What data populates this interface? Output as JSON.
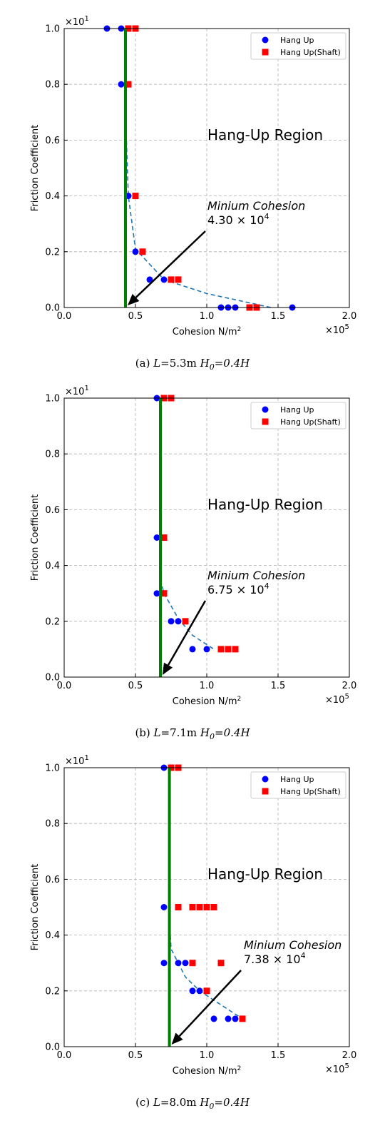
{
  "chart_data": [
    {
      "type": "scatter",
      "caption": "(a) L=5.3m H0=0.4H",
      "caption_parts": {
        "prefix": "(a) ",
        "L": "L",
        "L_val": "=5.3m ",
        "H0": "H",
        "H0_sub": "0",
        "H0_val": "=0.4H"
      },
      "xlabel": "Cohesion N/m",
      "xlabel_sup": "2",
      "ylabel": "Friction Coefficient",
      "x_multiplier": "×10",
      "x_multiplier_exp": "5",
      "y_multiplier": "×10",
      "y_multiplier_exp": "1",
      "xlim": [
        0,
        2.0
      ],
      "ylim": [
        0,
        1.0
      ],
      "x_ticks": [
        "0.0",
        "0.5",
        "1.0",
        "1.5",
        "2.0"
      ],
      "y_ticks": [
        "0.0",
        "0.2",
        "0.4",
        "0.6",
        "0.8",
        "1.0"
      ],
      "grid": true,
      "legend_position": "top-right",
      "region_label": "Hang-Up Region",
      "annotation": {
        "title": "Minium Cohesion",
        "mantissa": "4.30",
        "times": " × 10",
        "exp": "4",
        "x": 0.43,
        "y": 0.0
      },
      "green_line_x": 0.43,
      "series": [
        {
          "name": "Hang Up",
          "marker": "circle",
          "color": "#0000ff",
          "points": [
            [
              0.3,
              1.0
            ],
            [
              0.4,
              1.0
            ],
            [
              0.4,
              0.8
            ],
            [
              0.45,
              0.4
            ],
            [
              0.5,
              0.2
            ],
            [
              0.6,
              0.1
            ],
            [
              0.7,
              0.1
            ],
            [
              1.1,
              0.0
            ],
            [
              1.15,
              0.0
            ],
            [
              1.2,
              0.0
            ],
            [
              1.6,
              0.0
            ]
          ]
        },
        {
          "name": "Hang Up(Shaft)",
          "marker": "square",
          "color": "#ff0000",
          "points": [
            [
              0.45,
              1.0
            ],
            [
              0.5,
              1.0
            ],
            [
              0.45,
              0.8
            ],
            [
              0.5,
              0.4
            ],
            [
              0.55,
              0.2
            ],
            [
              0.75,
              0.1
            ],
            [
              0.8,
              0.1
            ],
            [
              1.3,
              0.0
            ],
            [
              1.35,
              0.0
            ]
          ]
        }
      ],
      "boundary_curve": [
        [
          0.43,
          0.7
        ],
        [
          0.45,
          0.4
        ],
        [
          0.5,
          0.21
        ],
        [
          0.7,
          0.1
        ],
        [
          1.0,
          0.05
        ],
        [
          1.45,
          0.0
        ]
      ]
    },
    {
      "type": "scatter",
      "caption": "(b) L=7.1m H0=0.4H",
      "caption_parts": {
        "prefix": "(b) ",
        "L": "L",
        "L_val": "=7.1m ",
        "H0": "H",
        "H0_sub": "0",
        "H0_val": "=0.4H"
      },
      "xlabel": "Cohesion N/m",
      "xlabel_sup": "2",
      "ylabel": "Friction Coefficient",
      "x_multiplier": "×10",
      "x_multiplier_exp": "5",
      "y_multiplier": "×10",
      "y_multiplier_exp": "1",
      "xlim": [
        0,
        2.0
      ],
      "ylim": [
        0,
        1.0
      ],
      "x_ticks": [
        "0.0",
        "0.5",
        "1.0",
        "1.5",
        "2.0"
      ],
      "y_ticks": [
        "0.0",
        "0.2",
        "0.4",
        "0.6",
        "0.8",
        "1.0"
      ],
      "grid": true,
      "legend_position": "top-right",
      "region_label": "Hang-Up Region",
      "annotation": {
        "title": "Minium Cohesion",
        "mantissa": "6.75",
        "times": " × 10",
        "exp": "4",
        "x": 0.675,
        "y": 0.0
      },
      "green_line_x": 0.675,
      "series": [
        {
          "name": "Hang Up",
          "marker": "circle",
          "color": "#0000ff",
          "points": [
            [
              0.65,
              1.0
            ],
            [
              0.65,
              0.5
            ],
            [
              0.65,
              0.3
            ],
            [
              0.75,
              0.2
            ],
            [
              0.8,
              0.2
            ],
            [
              0.9,
              0.1
            ],
            [
              1.0,
              0.1
            ]
          ]
        },
        {
          "name": "Hang Up(Shaft)",
          "marker": "square",
          "color": "#ff0000",
          "points": [
            [
              0.7,
              1.0
            ],
            [
              0.75,
              1.0
            ],
            [
              0.7,
              0.5
            ],
            [
              0.7,
              0.3
            ],
            [
              0.85,
              0.2
            ],
            [
              1.1,
              0.1
            ],
            [
              1.15,
              0.1
            ],
            [
              1.2,
              0.1
            ]
          ]
        }
      ],
      "boundary_curve": [
        [
          0.675,
          0.35
        ],
        [
          0.7,
          0.3
        ],
        [
          0.8,
          0.21
        ],
        [
          0.9,
          0.15
        ],
        [
          1.05,
          0.1
        ]
      ]
    },
    {
      "type": "scatter",
      "caption": "(c) L=8.0m H0=0.4H",
      "caption_parts": {
        "prefix": "(c) ",
        "L": "L",
        "L_val": "=8.0m ",
        "H0": "H",
        "H0_sub": "0",
        "H0_val": "=0.4H"
      },
      "xlabel": "Cohesion N/m",
      "xlabel_sup": "2",
      "ylabel": "Friction Coefficient",
      "x_multiplier": "×10",
      "x_multiplier_exp": "5",
      "y_multiplier": "×10",
      "y_multiplier_exp": "1",
      "xlim": [
        0,
        2.0
      ],
      "ylim": [
        0,
        1.0
      ],
      "x_ticks": [
        "0.0",
        "0.5",
        "1.0",
        "1.5",
        "2.0"
      ],
      "y_ticks": [
        "0.0",
        "0.2",
        "0.4",
        "0.6",
        "0.8",
        "1.0"
      ],
      "grid": true,
      "legend_position": "top-right",
      "region_label": "Hang-Up Region",
      "annotation": {
        "title": "Minium Cohesion",
        "mantissa": "7.38",
        "times": " × 10",
        "exp": "4",
        "x": 0.738,
        "y": 0.0
      },
      "green_line_x": 0.738,
      "series": [
        {
          "name": "Hang Up",
          "marker": "circle",
          "color": "#0000ff",
          "points": [
            [
              0.7,
              1.0
            ],
            [
              0.7,
              0.5
            ],
            [
              0.7,
              0.3
            ],
            [
              0.8,
              0.3
            ],
            [
              0.85,
              0.3
            ],
            [
              0.9,
              0.2
            ],
            [
              0.95,
              0.2
            ],
            [
              1.05,
              0.1
            ],
            [
              1.15,
              0.1
            ],
            [
              1.2,
              0.1
            ]
          ]
        },
        {
          "name": "Hang Up(Shaft)",
          "marker": "square",
          "color": "#ff0000",
          "points": [
            [
              0.75,
              1.0
            ],
            [
              0.8,
              1.0
            ],
            [
              0.8,
              0.5
            ],
            [
              0.9,
              0.5
            ],
            [
              0.95,
              0.5
            ],
            [
              1.0,
              0.5
            ],
            [
              1.05,
              0.5
            ],
            [
              0.9,
              0.3
            ],
            [
              1.1,
              0.3
            ],
            [
              1.0,
              0.2
            ],
            [
              1.25,
              0.1
            ]
          ]
        }
      ],
      "boundary_curve": [
        [
          0.738,
          0.45
        ],
        [
          0.75,
          0.35
        ],
        [
          0.85,
          0.25
        ],
        [
          0.95,
          0.2
        ],
        [
          1.1,
          0.15
        ],
        [
          1.25,
          0.1
        ]
      ]
    }
  ]
}
